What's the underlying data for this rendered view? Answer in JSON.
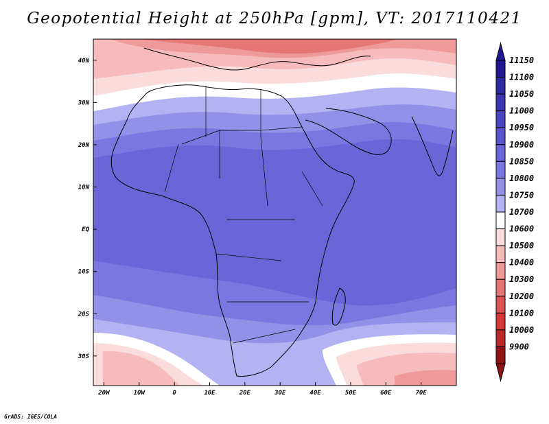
{
  "title": "Geopotential Height at 250hPa [gpm], VT: 2017110421",
  "credit": "GrADS: IGES/COLA",
  "map": {
    "projection": "lat-lon",
    "lon_range": [
      -23,
      80
    ],
    "lat_range": [
      -37,
      45
    ],
    "lat_ticks": [
      {
        "value": 40,
        "label": "40N"
      },
      {
        "value": 30,
        "label": "30N"
      },
      {
        "value": 20,
        "label": "20N"
      },
      {
        "value": 10,
        "label": "10N"
      },
      {
        "value": 0,
        "label": "EQ"
      },
      {
        "value": -10,
        "label": "10S"
      },
      {
        "value": -20,
        "label": "20S"
      },
      {
        "value": -30,
        "label": "30S"
      }
    ],
    "lon_ticks": [
      {
        "value": -20,
        "label": "20W"
      },
      {
        "value": -10,
        "label": "10W"
      },
      {
        "value": 0,
        "label": "0"
      },
      {
        "value": 10,
        "label": "10E"
      },
      {
        "value": 20,
        "label": "20E"
      },
      {
        "value": 30,
        "label": "30E"
      },
      {
        "value": 40,
        "label": "40E"
      },
      {
        "value": 50,
        "label": "50E"
      },
      {
        "value": 60,
        "label": "60E"
      },
      {
        "value": 70,
        "label": "70E"
      }
    ]
  },
  "colorbar": {
    "levels": [
      "11150",
      "11100",
      "11050",
      "11000",
      "10950",
      "10900",
      "10850",
      "10800",
      "10750",
      "10700",
      "10600",
      "10500",
      "10400",
      "10300",
      "10200",
      "10100",
      "10000",
      "9900"
    ],
    "colors": [
      "#201890",
      "#2e2ba0",
      "#3c37b0",
      "#4a45c0",
      "#5a55cc",
      "#6a66d8",
      "#7b77e0",
      "#9390e8",
      "#b4b2f2",
      "#ffffff",
      "#fbdcdc",
      "#f6bcbc",
      "#ef9a9a",
      "#e57676",
      "#dc5555",
      "#d43838",
      "#bb2a2a",
      "#8c1414"
    ],
    "arrow_top_color": "#201890",
    "arrow_bottom_color": "#8c1414"
  }
}
